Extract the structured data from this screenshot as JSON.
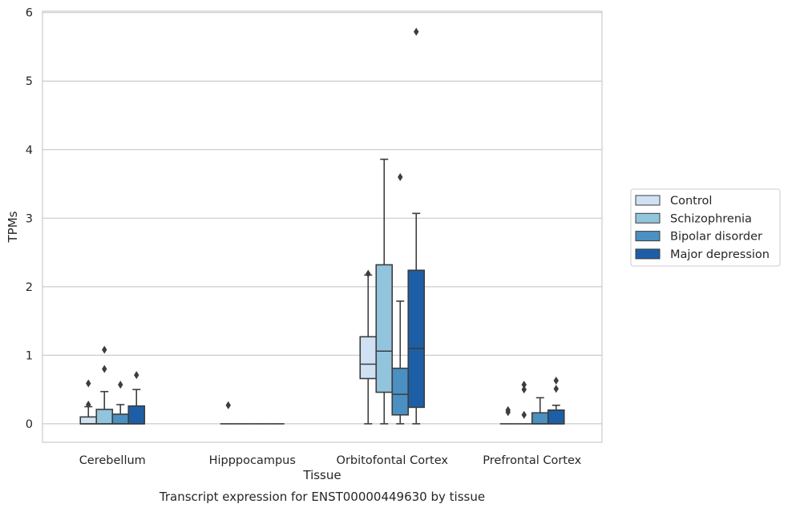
{
  "chart_data": {
    "type": "box",
    "title": "",
    "caption": "Transcript expression for ENST00000449630 by tissue",
    "xlabel": "Tissue",
    "ylabel": "TPMs",
    "ylim": [
      -0.27,
      6.02
    ],
    "yticks": [
      0,
      1,
      2,
      3,
      4,
      5,
      6
    ],
    "grid": "horizontal",
    "legend_position": "right",
    "categories": [
      "Cerebellum",
      "Hipppocampus",
      "Orbitofontal Cortex",
      "Prefrontal Cortex"
    ],
    "series": [
      {
        "name": "Control",
        "color": "#cfe1f2",
        "boxes": [
          {
            "whislo": 0,
            "q1": 0,
            "med": 0,
            "q3": 0.1,
            "whishi": 0.25,
            "fliers": [
              0.28,
              0.59
            ]
          },
          {
            "whislo": 0,
            "q1": 0,
            "med": 0,
            "q3": 0,
            "whishi": 0,
            "fliers": [
              0.27
            ]
          },
          {
            "whislo": 0,
            "q1": 0.66,
            "med": 0.87,
            "q3": 1.27,
            "whishi": 2.17,
            "fliers": [
              2.19
            ]
          },
          {
            "whislo": 0,
            "q1": 0,
            "med": 0,
            "q3": 0,
            "whishi": 0,
            "fliers": [
              0.17,
              0.2
            ]
          }
        ]
      },
      {
        "name": "Schizophrenia",
        "color": "#93c4de",
        "boxes": [
          {
            "whislo": 0,
            "q1": 0,
            "med": 0,
            "q3": 0.21,
            "whishi": 0.47,
            "fliers": [
              0.8,
              1.08
            ]
          },
          {
            "whislo": 0,
            "q1": 0,
            "med": 0,
            "q3": 0,
            "whishi": 0,
            "fliers": []
          },
          {
            "whislo": 0,
            "q1": 0.46,
            "med": 1.06,
            "q3": 2.32,
            "whishi": 3.86,
            "fliers": []
          },
          {
            "whislo": 0,
            "q1": 0,
            "med": 0,
            "q3": 0,
            "whishi": 0,
            "fliers": [
              0.13,
              0.5,
              0.57
            ]
          }
        ]
      },
      {
        "name": "Bipolar disorder",
        "color": "#4a90c2",
        "boxes": [
          {
            "whislo": 0,
            "q1": 0,
            "med": 0,
            "q3": 0.14,
            "whishi": 0.28,
            "fliers": [
              0.57
            ]
          },
          {
            "whislo": 0,
            "q1": 0,
            "med": 0,
            "q3": 0,
            "whishi": 0,
            "fliers": []
          },
          {
            "whislo": 0,
            "q1": 0.13,
            "med": 0.43,
            "q3": 0.81,
            "whishi": 1.79,
            "fliers": [
              3.6
            ]
          },
          {
            "whislo": 0,
            "q1": 0,
            "med": 0,
            "q3": 0.16,
            "whishi": 0.38,
            "fliers": []
          }
        ]
      },
      {
        "name": "Major depression",
        "color": "#1c5fa6",
        "boxes": [
          {
            "whislo": 0,
            "q1": 0,
            "med": 0,
            "q3": 0.26,
            "whishi": 0.5,
            "fliers": [
              0.71
            ]
          },
          {
            "whislo": 0,
            "q1": 0,
            "med": 0,
            "q3": 0,
            "whishi": 0,
            "fliers": []
          },
          {
            "whislo": 0,
            "q1": 0.24,
            "med": 1.1,
            "q3": 2.24,
            "whishi": 3.07,
            "fliers": [
              5.72
            ]
          },
          {
            "whislo": 0,
            "q1": 0,
            "med": 0,
            "q3": 0.2,
            "whishi": 0.27,
            "fliers": [
              0.51,
              0.63
            ]
          }
        ]
      }
    ]
  }
}
